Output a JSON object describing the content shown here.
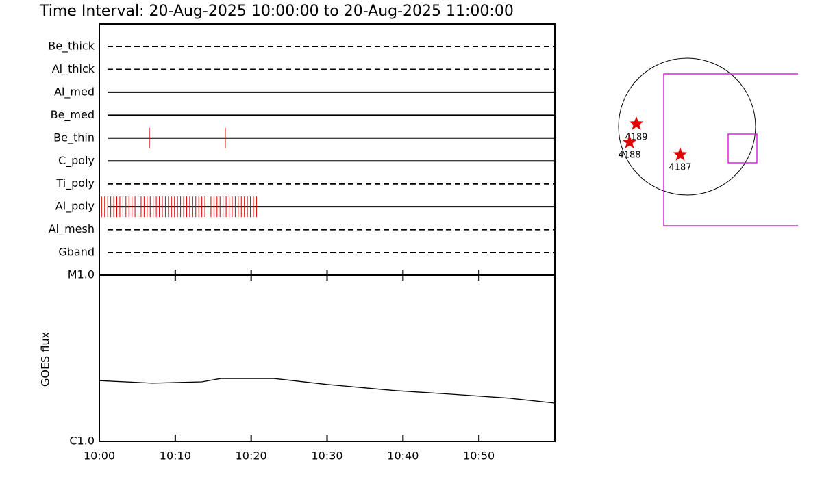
{
  "chart_data": [
    {
      "type": "timeline",
      "title": "Time Interval: 20-Aug-2025 10:00:00 to 20-Aug-2025 11:00:00",
      "xlim": [
        0,
        60
      ],
      "color": "#e00000",
      "rows": [
        {
          "name": "Be_thick",
          "style": "dashed",
          "exposures": []
        },
        {
          "name": "Al_thick",
          "style": "dashed",
          "exposures": []
        },
        {
          "name": "Al_med",
          "style": "solid",
          "exposures": []
        },
        {
          "name": "Be_med",
          "style": "solid",
          "exposures": []
        },
        {
          "name": "Be_thin",
          "style": "solid",
          "exposures": [
            6.6,
            16.6
          ]
        },
        {
          "name": "C_poly",
          "style": "solid",
          "exposures": []
        },
        {
          "name": "Ti_poly",
          "style": "dashed",
          "exposures": []
        },
        {
          "name": "Al_poly",
          "style": "solid",
          "exposures": [
            0.3,
            0.7,
            1.1,
            1.5,
            1.9,
            2.3,
            2.7,
            3.1,
            3.5,
            3.9,
            4.3,
            4.7,
            5.1,
            5.5,
            5.9,
            6.3,
            6.7,
            7.1,
            7.5,
            7.9,
            8.3,
            8.7,
            9.1,
            9.5,
            9.9,
            10.3,
            10.7,
            11.1,
            11.5,
            11.9,
            12.3,
            12.7,
            13.1,
            13.5,
            13.9,
            14.3,
            14.7,
            15.1,
            15.5,
            15.9,
            16.3,
            16.7,
            17.1,
            17.5,
            17.9,
            18.3,
            18.7,
            19.1,
            19.5,
            19.9,
            20.3,
            20.7
          ]
        },
        {
          "name": "Al_mesh",
          "style": "dashed",
          "exposures": []
        },
        {
          "name": "Gband",
          "style": "dashed",
          "exposures": []
        }
      ]
    },
    {
      "type": "line",
      "ylabel": "GOES flux",
      "log_y": true,
      "color": "#000000",
      "x": [
        0,
        7,
        13.5,
        16,
        23,
        30,
        39,
        46.5,
        54,
        60
      ],
      "values": [
        2.32e-06,
        2.24e-06,
        2.28e-06,
        2.39e-06,
        2.39e-06,
        2.2e-06,
        2.02e-06,
        1.92e-06,
        1.82e-06,
        1.7e-06
      ],
      "xlim": [
        0,
        60
      ],
      "xticks": [
        {
          "value": 0,
          "label": "10:00"
        },
        {
          "value": 10,
          "label": "10:10"
        },
        {
          "value": 20,
          "label": "10:20"
        },
        {
          "value": 30,
          "label": "10:30"
        },
        {
          "value": 40,
          "label": "10:40"
        },
        {
          "value": 50,
          "label": "10:50"
        }
      ],
      "ylim": [
        1e-06,
        1e-05
      ],
      "yticks": [
        {
          "value": 1e-06,
          "label": "C1.0"
        },
        {
          "value": 1e-05,
          "label": "M1.0"
        }
      ]
    }
  ],
  "map": {
    "regions": [
      {
        "label": "4189"
      },
      {
        "label": "4188"
      },
      {
        "label": "4187"
      }
    ]
  }
}
